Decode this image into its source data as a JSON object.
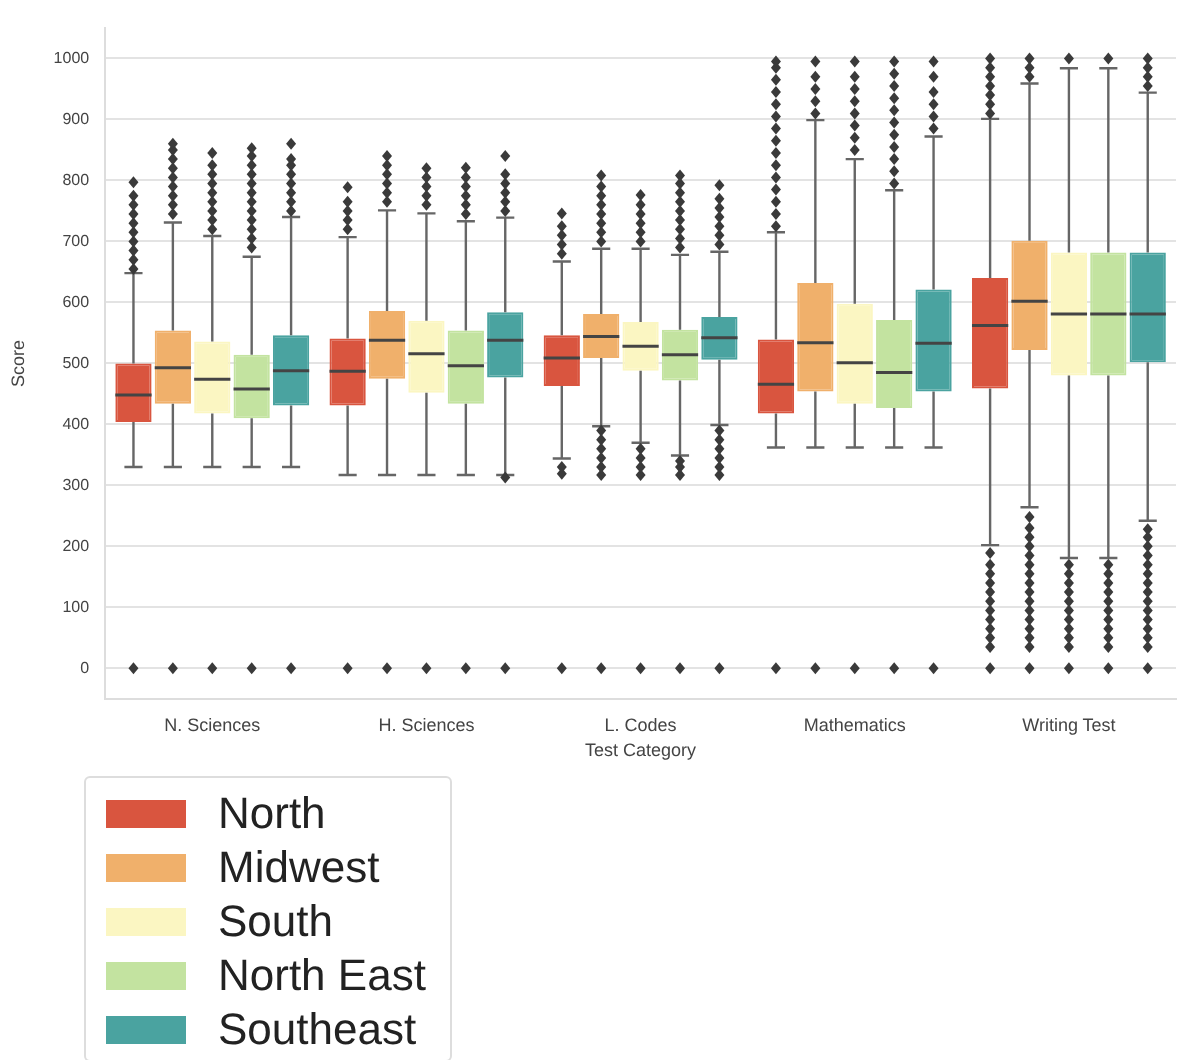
{
  "chart_data": {
    "type": "box",
    "xlabel": "Test Category",
    "ylabel": "Score",
    "categories": [
      "N. Sciences",
      "H. Sciences",
      "L. Codes",
      "Mathematics",
      "Writing Test"
    ],
    "ylim": [
      -50,
      1050
    ],
    "yticks": [
      0,
      100,
      200,
      300,
      400,
      500,
      600,
      700,
      800,
      900,
      1000
    ],
    "grid": "y",
    "legend": "bottom left",
    "series": [
      {
        "name": "North",
        "color": "#d9553f",
        "boxes": [
          {
            "low": 330,
            "q1": 404,
            "median": 448,
            "q3": 500,
            "high": 648,
            "outliers": [
              0,
              655,
              670,
              685,
              700,
              715,
              730,
              745,
              760,
              775,
              797
            ]
          },
          {
            "low": 317,
            "q1": 431,
            "median": 487,
            "q3": 541,
            "high": 707,
            "outliers": [
              0,
              720,
              735,
              750,
              765,
              789
            ]
          },
          {
            "low": 344,
            "q1": 463,
            "median": 509,
            "q3": 546,
            "high": 667,
            "outliers": [
              0,
              319,
              330,
              680,
              695,
              710,
              725,
              746
            ]
          },
          {
            "low": 362,
            "q1": 418,
            "median": 466,
            "q3": 539,
            "high": 715,
            "outliers": [
              0,
              725,
              745,
              765,
              785,
              805,
              825,
              845,
              865,
              885,
              905,
              925,
              945,
              965,
              985,
              995
            ]
          },
          {
            "low": 202,
            "q1": 459,
            "median": 562,
            "q3": 640,
            "high": 901,
            "outliers": [
              0,
              35,
              50,
              65,
              80,
              95,
              110,
              125,
              140,
              155,
              170,
              189,
              910,
              925,
              940,
              955,
              970,
              985,
              1000
            ]
          }
        ]
      },
      {
        "name": "Midwest",
        "color": "#f0b06b",
        "boxes": [
          {
            "low": 330,
            "q1": 434,
            "median": 493,
            "q3": 554,
            "high": 731,
            "outliers": [
              0,
              745,
              760,
              775,
              790,
              805,
              820,
              835,
              850,
              860
            ]
          },
          {
            "low": 317,
            "q1": 475,
            "median": 538,
            "q3": 586,
            "high": 751,
            "outliers": [
              0,
              765,
              780,
              795,
              810,
              825,
              840
            ]
          },
          {
            "low": 397,
            "q1": 509,
            "median": 544,
            "q3": 581,
            "high": 688,
            "outliers": [
              0,
              317,
              330,
              345,
              360,
              375,
              390,
              700,
              715,
              730,
              745,
              760,
              775,
              790,
              808
            ]
          },
          {
            "low": 362,
            "q1": 454,
            "median": 534,
            "q3": 632,
            "high": 899,
            "outliers": [
              0,
              910,
              930,
              950,
              970,
              995
            ]
          },
          {
            "low": 264,
            "q1": 522,
            "median": 602,
            "q3": 701,
            "high": 959,
            "outliers": [
              0,
              35,
              50,
              65,
              80,
              95,
              110,
              125,
              140,
              155,
              170,
              185,
              200,
              215,
              230,
              248,
              970,
              985,
              1000
            ]
          }
        ]
      },
      {
        "name": "South",
        "color": "#fbf6c2",
        "boxes": [
          {
            "low": 330,
            "q1": 418,
            "median": 474,
            "q3": 536,
            "high": 709,
            "outliers": [
              0,
              720,
              735,
              750,
              765,
              780,
              795,
              810,
              825,
              845
            ]
          },
          {
            "low": 317,
            "q1": 452,
            "median": 516,
            "q3": 570,
            "high": 746,
            "outliers": [
              0,
              760,
              775,
              790,
              805,
              820
            ]
          },
          {
            "low": 370,
            "q1": 488,
            "median": 528,
            "q3": 568,
            "high": 688,
            "outliers": [
              0,
              317,
              330,
              345,
              360,
              700,
              715,
              730,
              745,
              760,
              776
            ]
          },
          {
            "low": 362,
            "q1": 434,
            "median": 501,
            "q3": 598,
            "high": 835,
            "outliers": [
              0,
              850,
              870,
              890,
              910,
              930,
              950,
              970,
              995
            ]
          },
          {
            "low": 181,
            "q1": 480,
            "median": 581,
            "q3": 682,
            "high": 984,
            "outliers": [
              0,
              35,
              50,
              65,
              80,
              95,
              110,
              125,
              140,
              155,
              170,
              1000
            ]
          }
        ]
      },
      {
        "name": "North East",
        "color": "#c3e3a0",
        "boxes": [
          {
            "low": 330,
            "q1": 410,
            "median": 458,
            "q3": 514,
            "high": 675,
            "outliers": [
              0,
              690,
              705,
              720,
              735,
              750,
              765,
              780,
              795,
              810,
              825,
              840,
              853
            ]
          },
          {
            "low": 317,
            "q1": 434,
            "median": 496,
            "q3": 554,
            "high": 733,
            "outliers": [
              0,
              745,
              760,
              775,
              790,
              805,
              821
            ]
          },
          {
            "low": 349,
            "q1": 472,
            "median": 514,
            "q3": 555,
            "high": 678,
            "outliers": [
              0,
              317,
              330,
              340,
              690,
              705,
              720,
              735,
              750,
              765,
              780,
              795,
              808
            ]
          },
          {
            "low": 362,
            "q1": 427,
            "median": 485,
            "q3": 571,
            "high": 784,
            "outliers": [
              0,
              795,
              815,
              835,
              855,
              875,
              895,
              915,
              935,
              955,
              975,
              995
            ]
          },
          {
            "low": 181,
            "q1": 480,
            "median": 581,
            "q3": 682,
            "high": 984,
            "outliers": [
              0,
              35,
              50,
              65,
              80,
              95,
              110,
              125,
              140,
              155,
              170,
              1000
            ]
          }
        ]
      },
      {
        "name": "Southeast",
        "color": "#4aa3a0",
        "boxes": [
          {
            "low": 330,
            "q1": 431,
            "median": 488,
            "q3": 546,
            "high": 740,
            "outliers": [
              0,
              750,
              765,
              780,
              795,
              810,
              825,
              835,
              860
            ]
          },
          {
            "low": 317,
            "q1": 477,
            "median": 538,
            "q3": 584,
            "high": 739,
            "outliers": [
              0,
              313,
              750,
              765,
              780,
              795,
              810,
              840
            ]
          },
          {
            "low": 399,
            "q1": 506,
            "median": 542,
            "q3": 576,
            "high": 683,
            "outliers": [
              0,
              317,
              330,
              345,
              360,
              375,
              390,
              695,
              710,
              725,
              740,
              755,
              770,
              792
            ]
          },
          {
            "low": 362,
            "q1": 454,
            "median": 533,
            "q3": 621,
            "high": 872,
            "outliers": [
              0,
              885,
              905,
              925,
              945,
              970,
              995
            ]
          },
          {
            "low": 242,
            "q1": 502,
            "median": 581,
            "q3": 682,
            "high": 944,
            "outliers": [
              0,
              35,
              50,
              65,
              80,
              95,
              110,
              125,
              140,
              155,
              170,
              185,
              200,
              215,
              228,
              955,
              970,
              985,
              1000
            ]
          }
        ]
      }
    ]
  }
}
